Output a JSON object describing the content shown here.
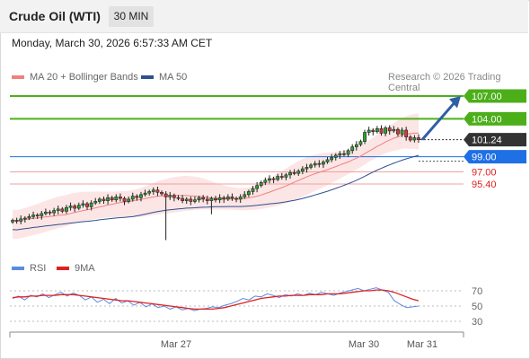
{
  "header": {
    "instrument": "Crude Oil (WTI)",
    "timeframe": "30 MIN",
    "datetime": "Monday, March 30, 2026 6:57:33 AM CET",
    "copyright": "Research © 2026 Trading Central"
  },
  "legend": {
    "bb_label": "MA 20 + Bollinger Bands",
    "ma50_label": "MA 50",
    "rsi_label": "RSI",
    "ma9_label": "9MA"
  },
  "colors": {
    "green_level": "#4caf1a",
    "blue_level": "#1f6fe5",
    "red_level": "#e02020",
    "dark_label": "#333333",
    "ma20": "#f08080",
    "ma50": "#2f4f8f",
    "rsi": "#5b8be0",
    "rsi_ma": "#e02020"
  },
  "chart_data": [
    {
      "type": "candlestick",
      "title": "Crude Oil (WTI) 30 MIN",
      "x_tick_labels": [
        "Mar 27",
        "Mar 30",
        "Mar 31"
      ],
      "ylim": [
        88.0,
        109.0
      ],
      "levels": [
        {
          "value": 107.0,
          "label": "107.00",
          "kind": "resistance-target",
          "color": "#4caf1a"
        },
        {
          "value": 104.0,
          "label": "104.00",
          "kind": "resistance",
          "color": "#4caf1a"
        },
        {
          "value": 101.24,
          "label": "101.24",
          "kind": "last-price",
          "color": "#333333"
        },
        {
          "value": 99.0,
          "label": "99.00",
          "kind": "pivot",
          "color": "#1f6fe5"
        },
        {
          "value": 97.0,
          "label": "97.00",
          "kind": "support",
          "color": "#e02020"
        },
        {
          "value": 95.4,
          "label": "95.40",
          "kind": "support",
          "color": "#e02020"
        }
      ],
      "close": [
        90.6,
        90.5,
        90.8,
        90.9,
        91.1,
        91.3,
        91.2,
        91.5,
        91.7,
        91.6,
        91.9,
        92.1,
        91.8,
        92.3,
        92.5,
        92.2,
        92.6,
        92.8,
        92.4,
        92.9,
        93.1,
        93.4,
        93.2,
        93.6,
        93.3,
        93.7,
        93.5,
        93.1,
        93.4,
        93.8,
        93.6,
        94.0,
        94.2,
        94.4,
        94.6,
        94.3,
        94.1,
        93.7,
        93.9,
        93.6,
        93.5,
        93.2,
        93.4,
        93.1,
        93.3,
        93.6,
        93.4,
        93.2,
        93.5,
        93.3,
        93.6,
        93.4,
        93.7,
        93.5,
        93.4,
        93.7,
        94.0,
        94.4,
        94.8,
        95.2,
        95.6,
        95.9,
        96.1,
        96.0,
        96.4,
        96.3,
        96.6,
        96.9,
        96.8,
        97.1,
        97.4,
        97.6,
        97.9,
        98.1,
        98.0,
        98.3,
        98.6,
        98.9,
        99.2,
        99.4,
        99.3,
        99.8,
        100.3,
        100.6,
        101.0,
        102.2,
        102.5,
        102.3,
        102.7,
        102.1,
        102.8,
        102.4,
        102.6,
        102.0,
        102.5,
        101.6,
        101.2,
        101.5,
        101.24
      ],
      "ma20_band": {
        "upper_end": 103.5,
        "lower_end": 99.6,
        "start": [
          89.8,
          91.6
        ]
      },
      "ma50_range": [
        88.8,
        99.4
      ]
    },
    {
      "type": "line",
      "title": "RSI",
      "ylim": [
        20,
        80
      ],
      "y_ticks": [
        70,
        50,
        30
      ],
      "series": [
        {
          "name": "RSI",
          "values": [
            60,
            63,
            58,
            64,
            62,
            66,
            61,
            65,
            68,
            63,
            67,
            64,
            58,
            62,
            55,
            59,
            53,
            60,
            54,
            57,
            51,
            55,
            49,
            53,
            48,
            50,
            46,
            49,
            45,
            47,
            44,
            46,
            47,
            49,
            48,
            51,
            53,
            56,
            60,
            58,
            63,
            62,
            66,
            64,
            61,
            65,
            63,
            66,
            64,
            67,
            65,
            68,
            66,
            64,
            67,
            69,
            71,
            73,
            70,
            72,
            74,
            71,
            68,
            57,
            52,
            48,
            49,
            50
          ]
        },
        {
          "name": "9MA",
          "values": [
            61,
            62,
            62,
            63,
            63,
            64,
            64,
            64,
            65,
            65,
            65,
            64,
            63,
            62,
            61,
            60,
            59,
            58,
            57,
            57,
            56,
            55,
            54,
            53,
            52,
            51,
            50,
            49,
            48,
            47,
            46,
            46,
            46,
            46,
            47,
            48,
            50,
            52,
            54,
            56,
            58,
            60,
            61,
            62,
            63,
            63,
            64,
            64,
            64,
            65,
            65,
            65,
            66,
            66,
            66,
            67,
            68,
            69,
            70,
            70,
            71,
            71,
            70,
            68,
            65,
            62,
            59,
            57
          ]
        }
      ]
    }
  ]
}
